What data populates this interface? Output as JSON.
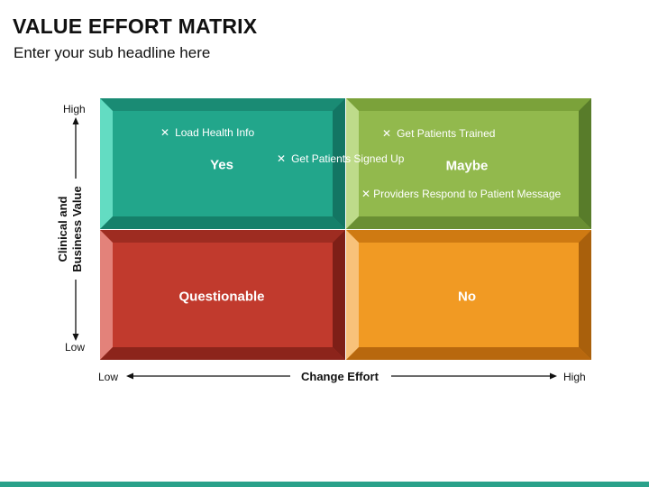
{
  "header": {
    "title": "VALUE EFFORT MATRIX",
    "subtitle": "Enter your sub headline here"
  },
  "y_axis": {
    "title_line1": "Clinical and",
    "title_line2": "Business Value",
    "high": "High",
    "low": "Low"
  },
  "x_axis": {
    "title": "Change Effort",
    "low": "Low",
    "high": "High"
  },
  "quadrants": {
    "top_left": {
      "label": "Yes",
      "color": "#21a58a"
    },
    "top_right": {
      "label": "Maybe",
      "color": "#8fb74a"
    },
    "bottom_left": {
      "label": "Questionable",
      "color": "#c0392b"
    },
    "bottom_right": {
      "label": "No",
      "color": "#f0961e"
    }
  },
  "items": [
    {
      "text": "Load Health Info"
    },
    {
      "text": "Get Patients Signed Up"
    },
    {
      "text": "Get Patients Trained"
    },
    {
      "text": "Providers Respond to Patient Message"
    }
  ],
  "marker_glyph": "✕"
}
